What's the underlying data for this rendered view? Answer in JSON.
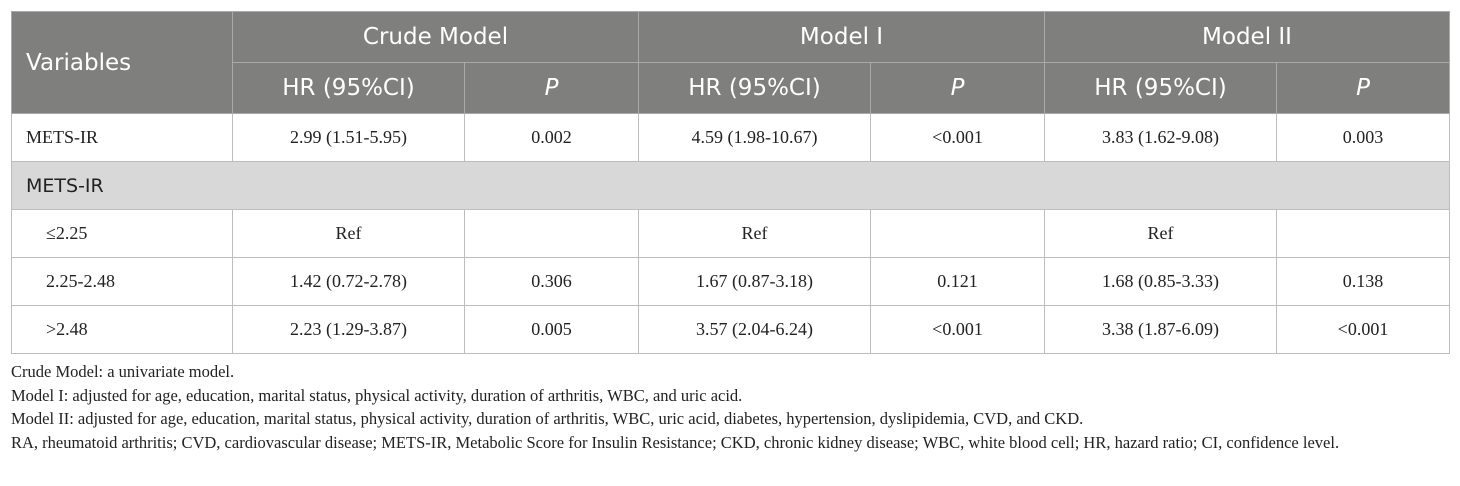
{
  "table": {
    "headers": {
      "variables": "Variables",
      "groups": [
        "Crude Model",
        "Model I",
        "Model II"
      ],
      "hr": "HR (95%CI)",
      "p": "P"
    },
    "rows": [
      {
        "label": "METS-IR",
        "cells": [
          "2.99 (1.51-5.95)",
          "0.002",
          "4.59 (1.98-10.67)",
          "<0.001",
          "3.83 (1.62-9.08)",
          "0.003"
        ]
      }
    ],
    "section": "METS-IR",
    "sub_rows": [
      {
        "label": "≤2.25",
        "cells": [
          "Ref",
          "",
          "Ref",
          "",
          "Ref",
          ""
        ]
      },
      {
        "label": "2.25-2.48",
        "cells": [
          "1.42 (0.72-2.78)",
          "0.306",
          "1.67 (0.87-3.18)",
          "0.121",
          "1.68 (0.85-3.33)",
          "0.138"
        ]
      },
      {
        "label": ">2.48",
        "cells": [
          "2.23 (1.29-3.87)",
          "0.005",
          "3.57 (2.04-6.24)",
          "<0.001",
          "3.38 (1.87-6.09)",
          "<0.001"
        ]
      }
    ]
  },
  "notes": [
    "Crude Model: a univariate model.",
    "Model I: adjusted for age, education, marital status, physical activity, duration of arthritis, WBC, and uric acid.",
    "Model II: adjusted for age, education, marital status, physical activity, duration of arthritis, WBC, uric acid, diabetes, hypertension, dyslipidemia, CVD, and CKD.",
    "RA, rheumatoid arthritis; CVD, cardiovascular disease; METS-IR, Metabolic Score for Insulin Resistance; CKD, chronic kidney disease; WBC, white blood cell; HR, hazard ratio; CI, confidence level."
  ],
  "colors": {
    "header_bg": "#7f7f7d",
    "section_bg": "#d8d8d8",
    "border": "#bdbdbd"
  }
}
